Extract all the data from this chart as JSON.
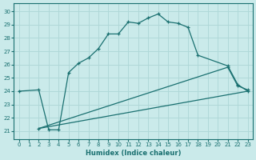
{
  "xlabel": "Humidex (Indice chaleur)",
  "xlim": [
    -0.5,
    23.5
  ],
  "ylim": [
    20.4,
    30.6
  ],
  "xticks": [
    0,
    1,
    2,
    3,
    4,
    5,
    6,
    7,
    8,
    9,
    10,
    11,
    12,
    13,
    14,
    15,
    16,
    17,
    18,
    19,
    20,
    21,
    22,
    23
  ],
  "yticks": [
    21,
    22,
    23,
    24,
    25,
    26,
    27,
    28,
    29,
    30
  ],
  "bg_color": "#caeaea",
  "line_color": "#1a7070",
  "grid_color": "#b0d8d8",
  "lines": [
    {
      "x": [
        0,
        2,
        3,
        4,
        5,
        6,
        7,
        8,
        9,
        10,
        11,
        12,
        13,
        14,
        15,
        16,
        17,
        18,
        21,
        22,
        23
      ],
      "y": [
        24.0,
        24.1,
        21.1,
        21.1,
        25.4,
        26.1,
        26.5,
        27.2,
        28.3,
        28.3,
        29.2,
        29.1,
        29.5,
        29.8,
        29.2,
        29.1,
        28.8,
        26.7,
        25.9,
        24.5,
        24.0
      ],
      "marker": "+"
    },
    {
      "x": [
        2,
        21,
        22,
        23
      ],
      "y": [
        21.2,
        25.8,
        24.4,
        24.1
      ],
      "marker": "+"
    },
    {
      "x": [
        2,
        23
      ],
      "y": [
        21.2,
        24.0
      ],
      "marker": null
    }
  ]
}
